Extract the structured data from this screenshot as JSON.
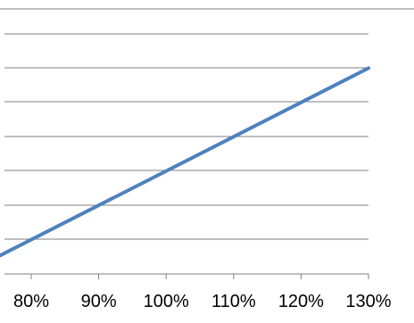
{
  "chart_data": {
    "type": "line",
    "title": "",
    "xlabel": "",
    "ylabel": "",
    "x_tick_labels": [
      "80%",
      "90%",
      "100%",
      "110%",
      "120%",
      "130%"
    ],
    "x": [
      0.75,
      1.3
    ],
    "series": [
      {
        "values": [
          0.0,
          0.55
        ]
      }
    ],
    "xlim": [
      0.75,
      1.3
    ],
    "ylim": [
      -0.05,
      0.65
    ],
    "y_ticks_visible": false,
    "grid": "horizontal",
    "legend": "none",
    "colors": {
      "line": "#4F81BD",
      "grid": "#7F7F7F",
      "text": "#000000"
    }
  }
}
